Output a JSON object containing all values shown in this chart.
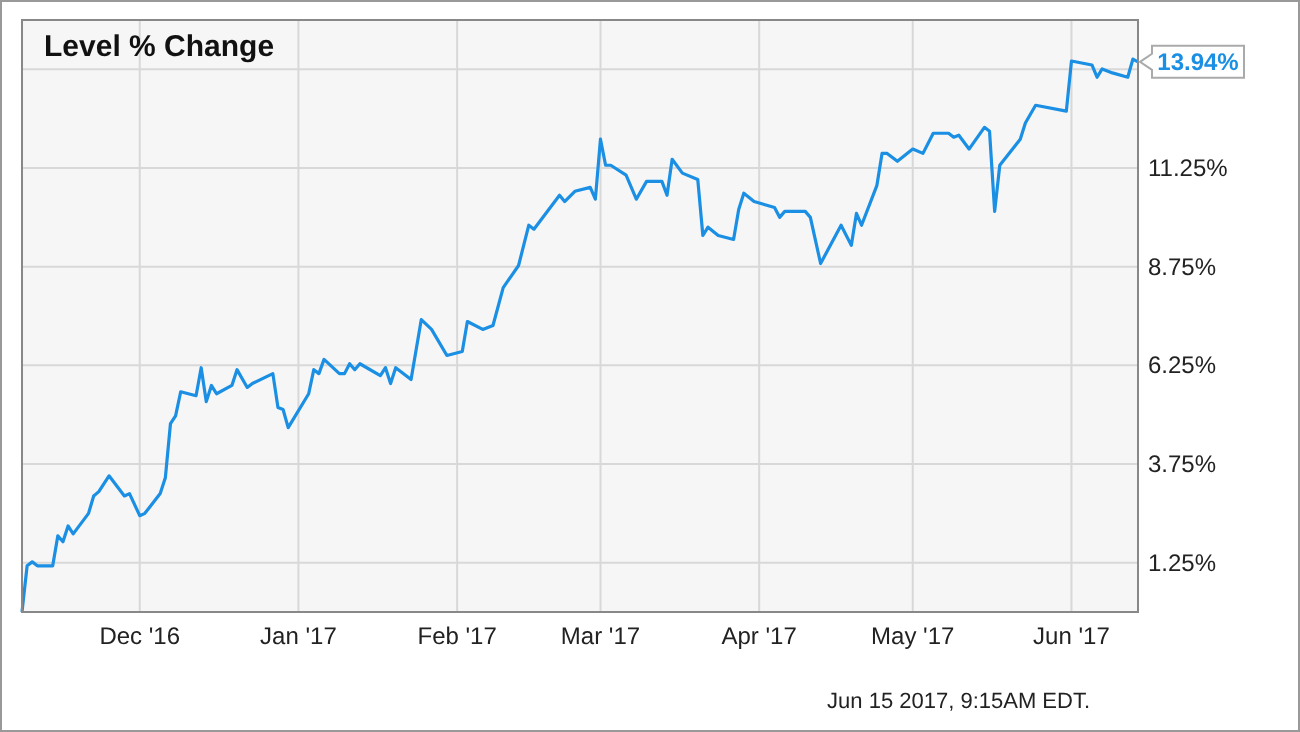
{
  "chart_data": {
    "type": "line",
    "title": "Level % Change",
    "x": [
      "2016-11-08",
      "2016-11-09",
      "2016-11-10",
      "2016-11-11",
      "2016-11-14",
      "2016-11-15",
      "2016-11-16",
      "2016-11-17",
      "2016-11-18",
      "2016-11-21",
      "2016-11-22",
      "2016-11-23",
      "2016-11-25",
      "2016-11-28",
      "2016-11-29",
      "2016-12-01",
      "2016-12-02",
      "2016-12-05",
      "2016-12-06",
      "2016-12-07",
      "2016-12-08",
      "2016-12-09",
      "2016-12-12",
      "2016-12-13",
      "2016-12-14",
      "2016-12-15",
      "2016-12-16",
      "2016-12-19",
      "2016-12-20",
      "2016-12-22",
      "2016-12-23",
      "2016-12-27",
      "2016-12-28",
      "2016-12-29",
      "2016-12-30",
      "2017-01-03",
      "2017-01-04",
      "2017-01-05",
      "2017-01-06",
      "2017-01-09",
      "2017-01-10",
      "2017-01-11",
      "2017-01-12",
      "2017-01-13",
      "2017-01-17",
      "2017-01-18",
      "2017-01-19",
      "2017-01-20",
      "2017-01-23",
      "2017-01-25",
      "2017-01-27",
      "2017-01-30",
      "2017-02-02",
      "2017-02-03",
      "2017-02-06",
      "2017-02-08",
      "2017-02-10",
      "2017-02-13",
      "2017-02-15",
      "2017-02-16",
      "2017-02-21",
      "2017-02-22",
      "2017-02-24",
      "2017-02-27",
      "2017-02-28",
      "2017-03-01",
      "2017-03-02",
      "2017-03-03",
      "2017-03-06",
      "2017-03-08",
      "2017-03-10",
      "2017-03-13",
      "2017-03-14",
      "2017-03-15",
      "2017-03-17",
      "2017-03-20",
      "2017-03-21",
      "2017-03-22",
      "2017-03-24",
      "2017-03-27",
      "2017-03-28",
      "2017-03-29",
      "2017-03-31",
      "2017-04-04",
      "2017-04-05",
      "2017-04-06",
      "2017-04-10",
      "2017-04-11",
      "2017-04-13",
      "2017-04-17",
      "2017-04-19",
      "2017-04-20",
      "2017-04-21",
      "2017-04-24",
      "2017-04-25",
      "2017-04-26",
      "2017-04-28",
      "2017-05-01",
      "2017-05-03",
      "2017-05-05",
      "2017-05-08",
      "2017-05-09",
      "2017-05-10",
      "2017-05-12",
      "2017-05-15",
      "2017-05-16",
      "2017-05-17",
      "2017-05-18",
      "2017-05-22",
      "2017-05-23",
      "2017-05-25",
      "2017-05-31",
      "2017-06-01",
      "2017-06-05",
      "2017-06-06",
      "2017-06-07",
      "2017-06-09",
      "2017-06-12",
      "2017-06-13",
      "2017-06-14"
    ],
    "series": [
      {
        "color": "#1a8fe3",
        "values": [
          0,
          1.17,
          1.27,
          1.17,
          1.17,
          1.93,
          1.78,
          2.18,
          1.98,
          2.5,
          2.94,
          3.05,
          3.45,
          2.94,
          3.0,
          2.44,
          2.5,
          3.0,
          3.4,
          4.77,
          4.97,
          5.58,
          5.48,
          6.19,
          5.33,
          5.74,
          5.53,
          5.74,
          6.14,
          5.69,
          5.79,
          6.04,
          5.18,
          5.13,
          4.67,
          5.53,
          6.14,
          6.04,
          6.4,
          6.04,
          6.04,
          6.29,
          6.14,
          6.29,
          5.99,
          6.19,
          5.79,
          6.19,
          5.89,
          7.41,
          7.16,
          6.5,
          6.6,
          7.36,
          7.16,
          7.26,
          8.22,
          8.78,
          9.8,
          9.7,
          10.56,
          10.4,
          10.66,
          10.76,
          10.46,
          11.98,
          11.32,
          11.32,
          11.07,
          10.46,
          10.91,
          10.91,
          10.56,
          11.47,
          11.12,
          10.96,
          9.54,
          9.75,
          9.54,
          9.44,
          10.2,
          10.61,
          10.4,
          10.25,
          10.0,
          10.15,
          10.15,
          10.0,
          8.83,
          9.8,
          9.29,
          10.1,
          9.8,
          10.81,
          11.62,
          11.62,
          11.42,
          11.73,
          11.62,
          12.13,
          12.13,
          12.03,
          12.08,
          11.73,
          12.28,
          12.18,
          10.15,
          11.32,
          11.98,
          12.39,
          12.84,
          12.69,
          13.96,
          13.86,
          13.55,
          13.76,
          13.66,
          13.55,
          14.01,
          13.94
        ]
      }
    ],
    "xlim": [
      "2016-11-08",
      "2017-06-14"
    ],
    "xticks": [
      {
        "value": "2016-12-01",
        "label": "Dec '16"
      },
      {
        "value": "2017-01-01",
        "label": "Jan '17"
      },
      {
        "value": "2017-02-01",
        "label": "Feb '17"
      },
      {
        "value": "2017-03-01",
        "label": "Mar '17"
      },
      {
        "value": "2017-04-01",
        "label": "Apr '17"
      },
      {
        "value": "2017-05-01",
        "label": "May '17"
      },
      {
        "value": "2017-06-01",
        "label": "Jun '17"
      }
    ],
    "ylim": [
      0,
      15
    ],
    "yticks": [
      {
        "value": 1.25,
        "label": "1.25%"
      },
      {
        "value": 3.75,
        "label": "3.75%"
      },
      {
        "value": 6.25,
        "label": "6.25%"
      },
      {
        "value": 8.75,
        "label": "8.75%"
      },
      {
        "value": 11.25,
        "label": "11.25%"
      },
      {
        "value": 13.75,
        "label": null
      }
    ],
    "grid": true,
    "marker": "none",
    "line_style": "solid",
    "annotations": [
      {
        "text": "13.94%",
        "x": "2017-06-14",
        "y": 13.94
      },
      "Jun 15 2017, 9:15AM EDT."
    ]
  }
}
